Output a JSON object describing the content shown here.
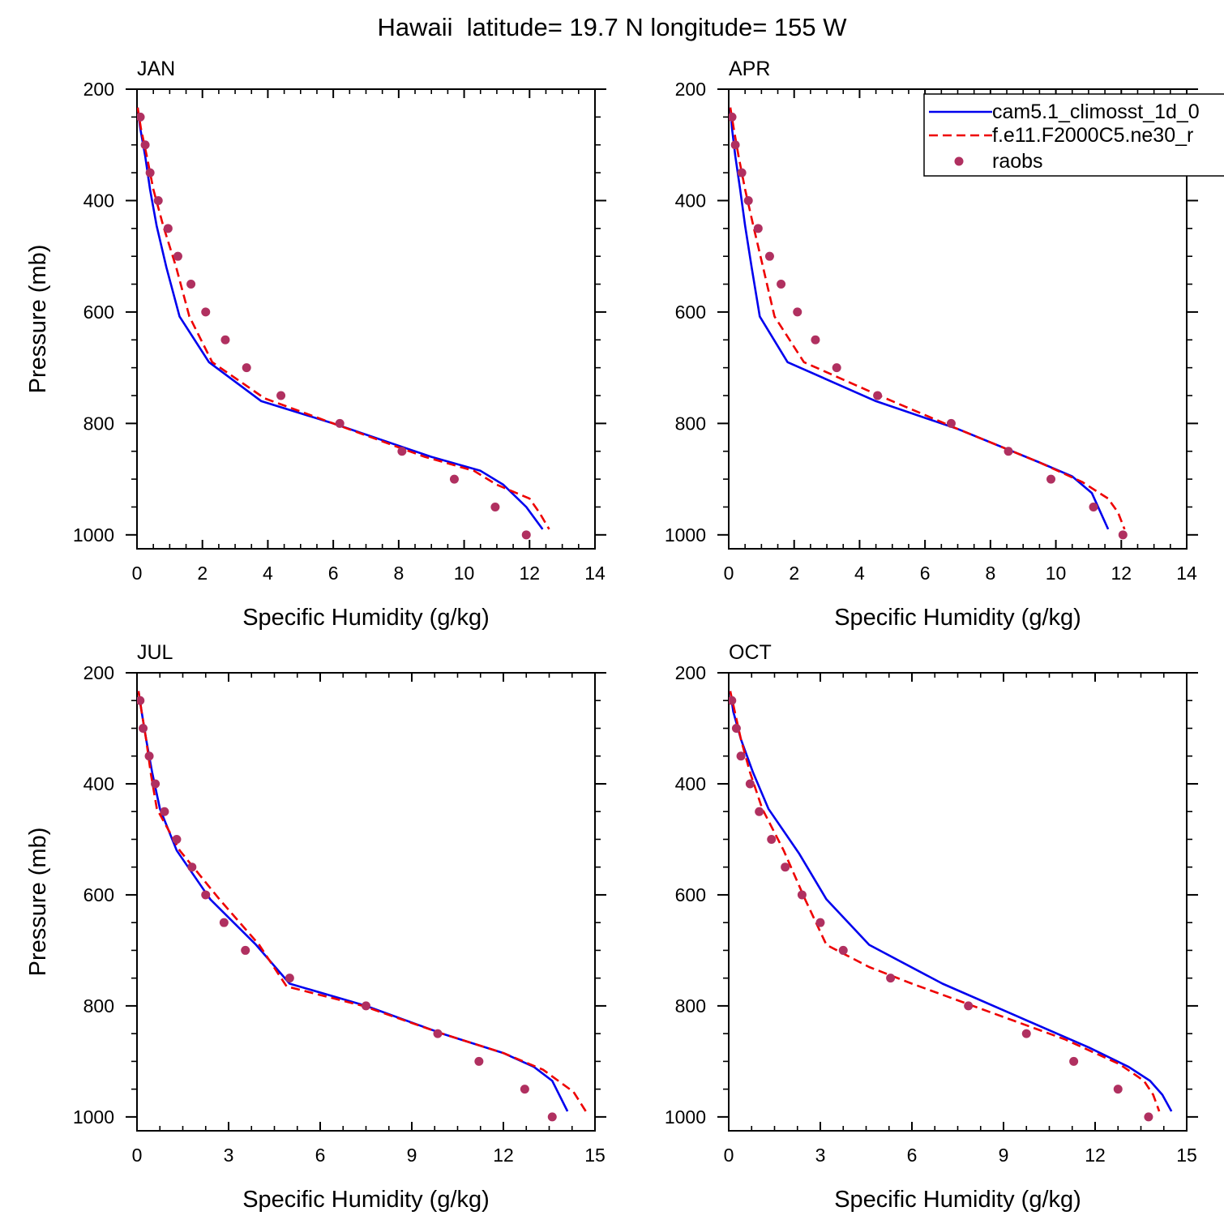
{
  "title": "Hawaii  latitude= 19.7 N longitude= 155 W",
  "legend": {
    "placement": "top-right of APR panel, clipped at figure edge",
    "entries": [
      "cam5.1_climosst_1d_0",
      "f.e11.F2000C5.ne30_r",
      "raobs"
    ]
  },
  "colors": {
    "model1": "#0000ee",
    "model2": "#ee0000",
    "obs": "#b03060",
    "axis": "#000000"
  },
  "chart_data": [
    {
      "type": "line",
      "panel": "JAN",
      "title": "JAN",
      "xlabel": "Specific Humidity (g/kg)",
      "ylabel": "Pressure (mb)",
      "xlim": [
        0,
        14
      ],
      "ylim": [
        200,
        1025
      ],
      "y_inverted": true,
      "xticks": [
        0,
        2,
        4,
        6,
        8,
        10,
        12,
        14
      ],
      "yticks": [
        200,
        400,
        600,
        800,
        1000
      ],
      "series": [
        {
          "name": "cam5.1_climosst_1d_0",
          "style": "solid",
          "color": "#0000ee",
          "x": [
            0.02,
            0.1,
            0.25,
            0.4,
            0.6,
            0.9,
            1.3,
            2.2,
            3.8,
            6.0,
            9.0,
            10.5,
            11.2,
            11.9,
            12.4
          ],
          "y": [
            233,
            270,
            320,
            380,
            445,
            520,
            608,
            690,
            760,
            800,
            860,
            885,
            910,
            950,
            990
          ]
        },
        {
          "name": "f.e11.F2000C5.ne30_r",
          "style": "dashed",
          "color": "#ee0000",
          "x": [
            0.02,
            0.12,
            0.3,
            0.5,
            0.8,
            1.2,
            1.6,
            2.3,
            3.9,
            6.0,
            8.8,
            10.3,
            11.0,
            12.0,
            12.3,
            12.6
          ],
          "y": [
            233,
            270,
            320,
            380,
            445,
            520,
            608,
            690,
            755,
            800,
            860,
            885,
            910,
            935,
            960,
            990
          ]
        },
        {
          "name": "raobs",
          "style": "markers",
          "color": "#b03060",
          "x": [
            0.1,
            0.25,
            0.4,
            0.65,
            0.95,
            1.25,
            1.65,
            2.1,
            2.7,
            3.35,
            4.4,
            6.2,
            8.1,
            9.7,
            10.95,
            11.9
          ],
          "y": [
            250,
            300,
            350,
            400,
            450,
            500,
            550,
            600,
            650,
            700,
            750,
            800,
            850,
            900,
            950,
            1000
          ]
        }
      ]
    },
    {
      "type": "line",
      "panel": "APR",
      "title": "APR",
      "xlabel": "Specific Humidity (g/kg)",
      "ylabel": "",
      "xlim": [
        0,
        14
      ],
      "ylim": [
        200,
        1025
      ],
      "y_inverted": true,
      "xticks": [
        0,
        2,
        4,
        6,
        8,
        10,
        12,
        14
      ],
      "yticks": [
        200,
        400,
        600,
        800,
        1000
      ],
      "series": [
        {
          "name": "cam5.1_climosst_1d_0",
          "style": "solid",
          "color": "#0000ee",
          "x": [
            0.05,
            0.1,
            0.2,
            0.35,
            0.5,
            0.7,
            0.95,
            1.8,
            4.5,
            7.0,
            9.5,
            10.5,
            11.1,
            11.6
          ],
          "y": [
            233,
            270,
            320,
            380,
            445,
            520,
            608,
            690,
            760,
            810,
            870,
            895,
            925,
            990
          ]
        },
        {
          "name": "f.e11.F2000C5.ne30_r",
          "style": "dashed",
          "color": "#ee0000",
          "x": [
            0.05,
            0.15,
            0.3,
            0.5,
            0.75,
            1.05,
            1.4,
            2.3,
            4.6,
            7.0,
            9.5,
            10.8,
            11.6,
            11.9,
            12.1
          ],
          "y": [
            233,
            270,
            320,
            380,
            445,
            520,
            608,
            690,
            750,
            810,
            870,
            905,
            935,
            960,
            990
          ]
        },
        {
          "name": "raobs",
          "style": "markers",
          "color": "#b03060",
          "x": [
            0.1,
            0.2,
            0.4,
            0.6,
            0.9,
            1.25,
            1.6,
            2.1,
            2.65,
            3.3,
            4.55,
            6.8,
            8.55,
            9.85,
            11.15,
            12.05
          ],
          "y": [
            250,
            300,
            350,
            400,
            450,
            500,
            550,
            600,
            650,
            700,
            750,
            800,
            850,
            900,
            950,
            1000
          ]
        }
      ]
    },
    {
      "type": "line",
      "panel": "JUL",
      "title": "JUL",
      "xlabel": "Specific Humidity (g/kg)",
      "ylabel": "Pressure (mb)",
      "xlim": [
        0,
        15
      ],
      "ylim": [
        200,
        1025
      ],
      "y_inverted": true,
      "xticks": [
        0,
        3,
        6,
        9,
        12,
        15
      ],
      "yticks": [
        200,
        400,
        600,
        800,
        1000
      ],
      "series": [
        {
          "name": "cam5.1_climosst_1d_0",
          "style": "solid",
          "color": "#0000ee",
          "x": [
            0.05,
            0.15,
            0.3,
            0.5,
            0.75,
            1.3,
            2.4,
            3.9,
            5.0,
            7.5,
            10.0,
            12.0,
            13.0,
            13.6,
            14.1
          ],
          "y": [
            233,
            270,
            320,
            380,
            445,
            520,
            608,
            690,
            760,
            800,
            850,
            885,
            910,
            935,
            990
          ]
        },
        {
          "name": "f.e11.F2000C5.ne30_r",
          "style": "dashed",
          "color": "#ee0000",
          "x": [
            0.05,
            0.15,
            0.3,
            0.45,
            0.65,
            1.4,
            2.7,
            4.0,
            4.9,
            7.4,
            10.0,
            12.0,
            13.3,
            14.3,
            14.7
          ],
          "y": [
            233,
            270,
            320,
            380,
            445,
            520,
            608,
            690,
            765,
            800,
            850,
            885,
            915,
            955,
            990
          ]
        },
        {
          "name": "raobs",
          "style": "markers",
          "color": "#b03060",
          "x": [
            0.1,
            0.2,
            0.4,
            0.6,
            0.9,
            1.3,
            1.8,
            2.25,
            2.85,
            3.55,
            5.0,
            7.5,
            9.85,
            11.2,
            12.7,
            13.6
          ],
          "y": [
            250,
            300,
            350,
            400,
            450,
            500,
            550,
            600,
            650,
            700,
            750,
            800,
            850,
            900,
            950,
            1000
          ]
        }
      ]
    },
    {
      "type": "line",
      "panel": "OCT",
      "title": "OCT",
      "xlabel": "Specific Humidity (g/kg)",
      "ylabel": "",
      "xlim": [
        0,
        15
      ],
      "ylim": [
        200,
        1025
      ],
      "y_inverted": true,
      "xticks": [
        0,
        3,
        6,
        9,
        12,
        15
      ],
      "yticks": [
        200,
        400,
        600,
        800,
        1000
      ],
      "series": [
        {
          "name": "cam5.1_climosst_1d_0",
          "style": "solid",
          "color": "#0000ee",
          "x": [
            0.05,
            0.15,
            0.4,
            0.8,
            1.3,
            2.3,
            3.2,
            4.6,
            7.0,
            9.5,
            11.8,
            13.1,
            13.8,
            14.2,
            14.5
          ],
          "y": [
            233,
            270,
            320,
            380,
            445,
            525,
            608,
            690,
            760,
            820,
            875,
            910,
            935,
            960,
            990
          ]
        },
        {
          "name": "f.e11.F2000C5.ne30_r",
          "style": "dashed",
          "color": "#ee0000",
          "x": [
            0.05,
            0.2,
            0.4,
            0.7,
            1.1,
            1.8,
            2.5,
            3.2,
            4.6,
            6.0,
            8.5,
            11.0,
            12.8,
            13.6,
            13.9,
            14.1
          ],
          "y": [
            233,
            270,
            320,
            380,
            445,
            520,
            608,
            690,
            730,
            760,
            810,
            860,
            905,
            935,
            960,
            990
          ]
        },
        {
          "name": "raobs",
          "style": "markers",
          "color": "#b03060",
          "x": [
            0.1,
            0.25,
            0.4,
            0.7,
            1.0,
            1.4,
            1.85,
            2.4,
            3.0,
            3.75,
            5.3,
            7.85,
            9.75,
            11.3,
            12.75,
            13.75
          ],
          "y": [
            250,
            300,
            350,
            400,
            450,
            500,
            550,
            600,
            650,
            700,
            750,
            800,
            850,
            900,
            950,
            1000
          ]
        }
      ]
    }
  ]
}
